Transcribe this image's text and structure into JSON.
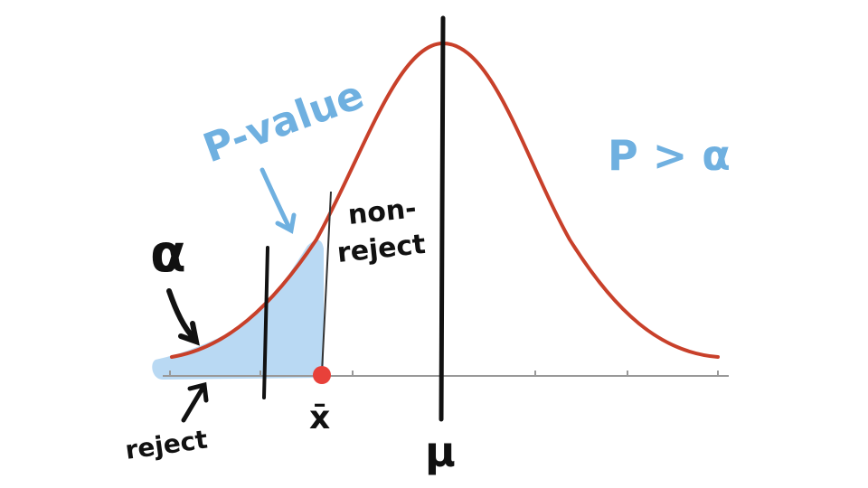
{
  "labels": {
    "alpha": "α",
    "p_value": "P-value",
    "p_greater_alpha": "P > α",
    "non_reject_line1": "non-",
    "non_reject_line2": "reject",
    "reject": "reject",
    "x_bar": "x̄",
    "mu": "μ"
  },
  "colors": {
    "curve": "#c8402a",
    "shade": "#b9d9f3",
    "ink": "#111111",
    "annotation_blue": "#6fb0e0",
    "sample_point": "#e8413a",
    "axis": "#999999"
  }
}
